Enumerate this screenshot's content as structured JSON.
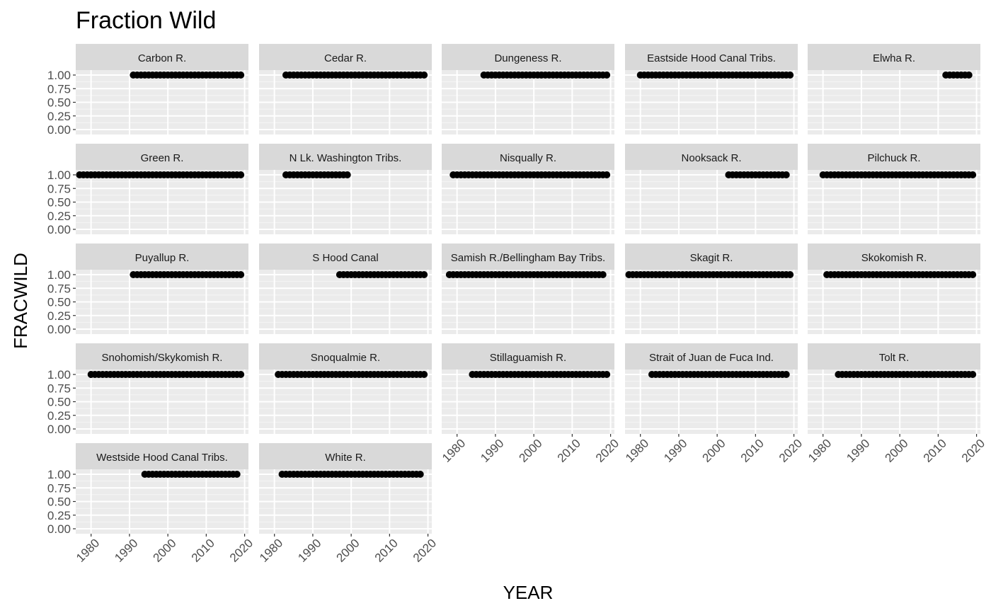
{
  "chart_data": {
    "type": "scatter",
    "title": "Fraction Wild",
    "xlabel": "YEAR",
    "ylabel": "FRACWILD",
    "xlim": [
      1976,
      2021
    ],
    "ylim": [
      0,
      1
    ],
    "x_ticks": [
      1980,
      1990,
      2000,
      2010,
      2020
    ],
    "y_ticks": [
      "0.00",
      "0.25",
      "0.50",
      "0.75",
      "1.00"
    ],
    "grid": true,
    "facets": [
      {
        "name": "Carbon R.",
        "year_start": 1991,
        "year_end": 2019,
        "value": 1.0
      },
      {
        "name": "Cedar R.",
        "year_start": 1983,
        "year_end": 2019,
        "value": 1.0
      },
      {
        "name": "Dungeness R.",
        "year_start": 1987,
        "year_end": 2019,
        "value": 1.0
      },
      {
        "name": "Eastside Hood Canal Tribs.",
        "year_start": 1980,
        "year_end": 2019,
        "value": 1.0
      },
      {
        "name": "Elwha R.",
        "year_start": 2012,
        "year_end": 2018,
        "value": 1.0
      },
      {
        "name": "Green R.",
        "year_start": 1977,
        "year_end": 2019,
        "value": 1.0
      },
      {
        "name": "N Lk. Washington Tribs.",
        "year_start": 1983,
        "year_end": 1999,
        "value": 1.0
      },
      {
        "name": "Nisqually R.",
        "year_start": 1979,
        "year_end": 2019,
        "value": 1.0
      },
      {
        "name": "Nooksack R.",
        "year_start": 2003,
        "year_end": 2018,
        "value": 1.0
      },
      {
        "name": "Pilchuck R.",
        "year_start": 1980,
        "year_end": 2019,
        "value": 1.0
      },
      {
        "name": "Puyallup R.",
        "year_start": 1991,
        "year_end": 2019,
        "value": 1.0
      },
      {
        "name": "S Hood Canal",
        "year_start": 1997,
        "year_end": 2019,
        "value": 1.0
      },
      {
        "name": "Samish R./Bellingham Bay Tribs.",
        "year_start": 1978,
        "year_end": 2018,
        "value": 1.0
      },
      {
        "name": "Skagit R.",
        "year_start": 1977,
        "year_end": 2019,
        "value": 1.0
      },
      {
        "name": "Skokomish R.",
        "year_start": 1981,
        "year_end": 2019,
        "value": 1.0
      },
      {
        "name": "Snohomish/Skykomish R.",
        "year_start": 1980,
        "year_end": 2019,
        "value": 1.0
      },
      {
        "name": "Snoqualmie R.",
        "year_start": 1981,
        "year_end": 2019,
        "value": 1.0
      },
      {
        "name": "Stillaguamish R.",
        "year_start": 1984,
        "year_end": 2019,
        "value": 1.0
      },
      {
        "name": "Strait of Juan de Fuca Ind.",
        "year_start": 1983,
        "year_end": 2018,
        "value": 1.0
      },
      {
        "name": "Tolt R.",
        "year_start": 1984,
        "year_end": 2019,
        "value": 1.0
      },
      {
        "name": "Westside Hood Canal Tribs.",
        "year_start": 1994,
        "year_end": 2018,
        "value": 1.0
      },
      {
        "name": "White R.",
        "year_start": 1982,
        "year_end": 2018,
        "value": 1.0
      }
    ]
  }
}
